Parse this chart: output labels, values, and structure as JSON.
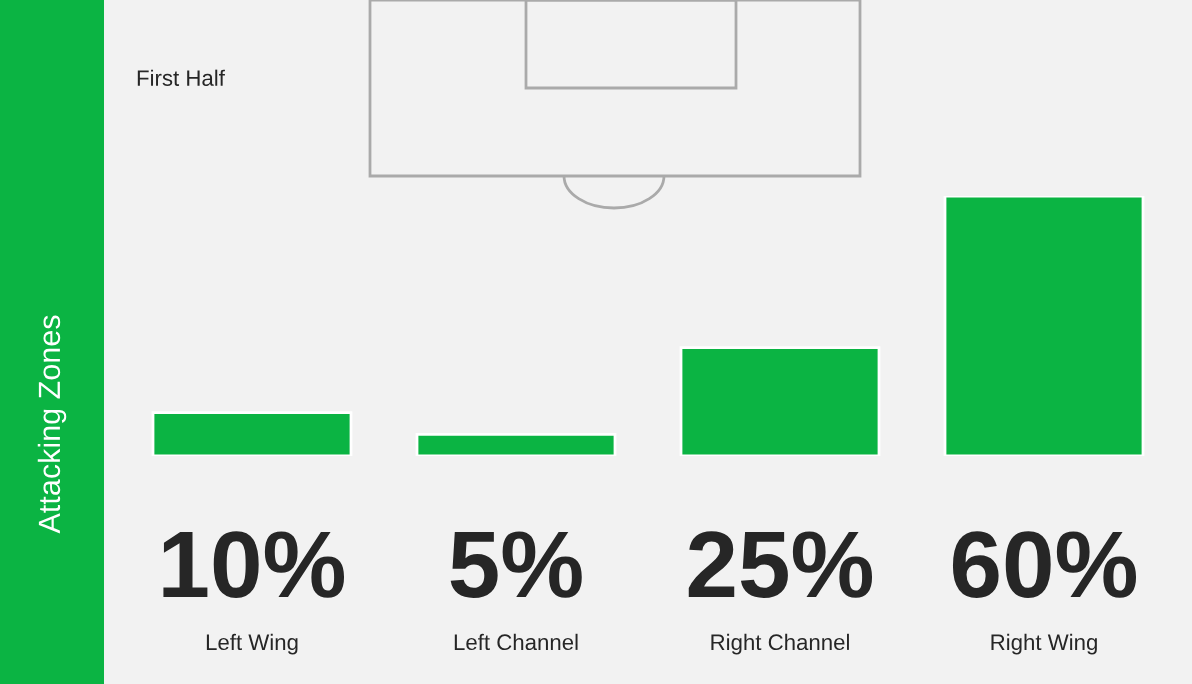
{
  "chart_data": {
    "type": "bar",
    "subtitle": "First Half",
    "ylabel": "Attacking Zones",
    "categories": [
      "Left Wing",
      "Left Channel",
      "Right Channel",
      "Right Wing"
    ],
    "values": [
      10,
      5,
      25,
      60
    ],
    "value_labels": [
      "10%",
      "5%",
      "25%",
      "60%"
    ],
    "color": "#0bb443",
    "grid": false,
    "legend": false
  }
}
